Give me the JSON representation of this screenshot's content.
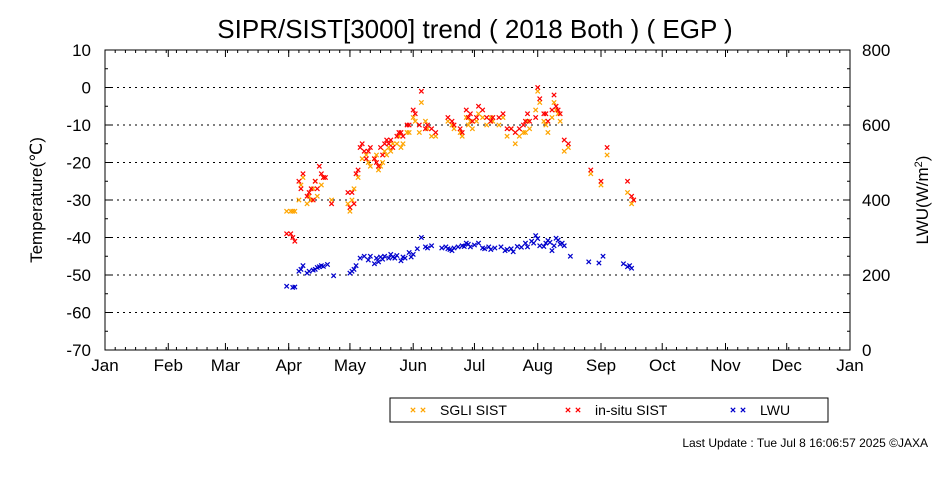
{
  "chart_data": {
    "type": "scatter",
    "title": "SIPR/SIST[3000] trend ( 2018 Both ) ( EGP )",
    "ylabel": "Temperature(℃)",
    "y2label": "LWU(W/m²)",
    "ylim": [
      -70,
      10
    ],
    "y2lim": [
      0,
      800
    ],
    "yticks": [
      10,
      0,
      -10,
      -20,
      -30,
      -40,
      -50,
      -60,
      -70
    ],
    "y2ticks": [
      800,
      600,
      400,
      200,
      0
    ],
    "xticks": [
      {
        "label": "Jan",
        "day": 1
      },
      {
        "label": "Feb",
        "day": 32
      },
      {
        "label": "Mar",
        "day": 60
      },
      {
        "label": "Apr",
        "day": 91
      },
      {
        "label": "May",
        "day": 121
      },
      {
        "label": "Jun",
        "day": 152
      },
      {
        "label": "Jul",
        "day": 182
      },
      {
        "label": "Aug",
        "day": 213
      },
      {
        "label": "Sep",
        "day": 244
      },
      {
        "label": "Oct",
        "day": 274
      },
      {
        "label": "Nov",
        "day": 305
      },
      {
        "label": "Dec",
        "day": 335
      },
      {
        "label": "Jan",
        "day": 366
      }
    ],
    "xlim": [
      1,
      366
    ],
    "grid": "horizontal dotted",
    "legend_position": "bottom",
    "series": [
      {
        "name": "SGLI SIST",
        "color": "#ffa500",
        "axis": "left",
        "points": [
          [
            90,
            -33
          ],
          [
            92,
            -33
          ],
          [
            93,
            -33
          ],
          [
            94,
            -33
          ],
          [
            96,
            -30
          ],
          [
            97,
            -26
          ],
          [
            98,
            -24
          ],
          [
            100,
            -31
          ],
          [
            101,
            -29
          ],
          [
            102,
            -30
          ],
          [
            103,
            -27
          ],
          [
            104,
            -25
          ],
          [
            105,
            -29
          ],
          [
            107,
            -26
          ],
          [
            108,
            -24
          ],
          [
            112,
            -30
          ],
          [
            120,
            -31
          ],
          [
            121,
            -33
          ],
          [
            122,
            -30
          ],
          [
            123,
            -27
          ],
          [
            125,
            -24
          ],
          [
            127,
            -19
          ],
          [
            129,
            -18
          ],
          [
            130,
            -20
          ],
          [
            131,
            -21
          ],
          [
            133,
            -19
          ],
          [
            134,
            -18
          ],
          [
            135,
            -22
          ],
          [
            136,
            -21
          ],
          [
            137,
            -20
          ],
          [
            138,
            -17
          ],
          [
            139,
            -18
          ],
          [
            140,
            -16
          ],
          [
            141,
            -17
          ],
          [
            142,
            -15
          ],
          [
            144,
            -15
          ],
          [
            145,
            -13
          ],
          [
            146,
            -16
          ],
          [
            147,
            -15
          ],
          [
            149,
            -12
          ],
          [
            150,
            -12
          ],
          [
            152,
            -8
          ],
          [
            153,
            -9
          ],
          [
            155,
            -12
          ],
          [
            156,
            -4
          ],
          [
            158,
            -9
          ],
          [
            159,
            -11
          ],
          [
            161,
            -13
          ],
          [
            163,
            -13
          ],
          [
            169,
            -9
          ],
          [
            171,
            -10
          ],
          [
            172,
            -11
          ],
          [
            175,
            -12
          ],
          [
            176,
            -13
          ],
          [
            178,
            -8
          ],
          [
            179,
            -10
          ],
          [
            180,
            -9
          ],
          [
            181,
            -11
          ],
          [
            183,
            -9
          ],
          [
            184,
            -7
          ],
          [
            186,
            -8
          ],
          [
            188,
            -10
          ],
          [
            190,
            -8
          ],
          [
            191,
            -9
          ],
          [
            194,
            -10
          ],
          [
            196,
            -8
          ],
          [
            198,
            -13
          ],
          [
            200,
            -11
          ],
          [
            202,
            -15
          ],
          [
            204,
            -13
          ],
          [
            206,
            -12
          ],
          [
            207,
            -12
          ],
          [
            208,
            -9
          ],
          [
            209,
            -11
          ],
          [
            212,
            -6
          ],
          [
            213,
            -1
          ],
          [
            214,
            -4
          ],
          [
            216,
            -9
          ],
          [
            217,
            -10
          ],
          [
            218,
            -12
          ],
          [
            220,
            -8
          ],
          [
            221,
            -4
          ],
          [
            222,
            -6
          ],
          [
            223,
            -7
          ],
          [
            224,
            -9
          ],
          [
            226,
            -17
          ],
          [
            228,
            -16
          ],
          [
            239,
            -23
          ],
          [
            244,
            -26
          ],
          [
            247,
            -18
          ],
          [
            257,
            -28
          ],
          [
            259,
            -31
          ],
          [
            260,
            -30
          ]
        ]
      },
      {
        "name": "in-situ SIST",
        "color": "#ff0000",
        "axis": "left",
        "points": [
          [
            90,
            -39
          ],
          [
            92,
            -39
          ],
          [
            93,
            -40
          ],
          [
            94,
            -41
          ],
          [
            96,
            -25
          ],
          [
            97,
            -27
          ],
          [
            98,
            -23
          ],
          [
            100,
            -29
          ],
          [
            101,
            -28
          ],
          [
            102,
            -27
          ],
          [
            103,
            -30
          ],
          [
            104,
            -25
          ],
          [
            105,
            -27
          ],
          [
            106,
            -21
          ],
          [
            107,
            -23
          ],
          [
            108,
            -24
          ],
          [
            109,
            -24
          ],
          [
            112,
            -31
          ],
          [
            120,
            -28
          ],
          [
            121,
            -32
          ],
          [
            122,
            -28
          ],
          [
            123,
            -31
          ],
          [
            124,
            -23
          ],
          [
            125,
            -22
          ],
          [
            126,
            -16
          ],
          [
            127,
            -15
          ],
          [
            128,
            -17
          ],
          [
            129,
            -19
          ],
          [
            130,
            -17
          ],
          [
            131,
            -16
          ],
          [
            133,
            -19
          ],
          [
            134,
            -20
          ],
          [
            135,
            -21
          ],
          [
            136,
            -16
          ],
          [
            137,
            -18
          ],
          [
            138,
            -15
          ],
          [
            139,
            -14
          ],
          [
            140,
            -15
          ],
          [
            141,
            -14
          ],
          [
            142,
            -16
          ],
          [
            144,
            -13
          ],
          [
            145,
            -12
          ],
          [
            146,
            -12
          ],
          [
            147,
            -13
          ],
          [
            149,
            -10
          ],
          [
            150,
            -10
          ],
          [
            152,
            -6
          ],
          [
            153,
            -7
          ],
          [
            155,
            -10
          ],
          [
            156,
            -1
          ],
          [
            158,
            -11
          ],
          [
            159,
            -10
          ],
          [
            161,
            -11
          ],
          [
            163,
            -12
          ],
          [
            169,
            -8
          ],
          [
            171,
            -9
          ],
          [
            172,
            -10
          ],
          [
            175,
            -11
          ],
          [
            176,
            -12
          ],
          [
            178,
            -6
          ],
          [
            179,
            -8
          ],
          [
            180,
            -7
          ],
          [
            181,
            -9
          ],
          [
            183,
            -8
          ],
          [
            184,
            -5
          ],
          [
            186,
            -6
          ],
          [
            188,
            -8
          ],
          [
            190,
            -9
          ],
          [
            191,
            -8
          ],
          [
            194,
            -8
          ],
          [
            196,
            -7
          ],
          [
            198,
            -11
          ],
          [
            200,
            -11
          ],
          [
            202,
            -12
          ],
          [
            204,
            -11
          ],
          [
            206,
            -10
          ],
          [
            207,
            -9
          ],
          [
            208,
            -7
          ],
          [
            209,
            -9
          ],
          [
            212,
            -8
          ],
          [
            213,
            0
          ],
          [
            214,
            -3
          ],
          [
            216,
            -7
          ],
          [
            217,
            -7
          ],
          [
            218,
            -9
          ],
          [
            220,
            -6
          ],
          [
            221,
            -2
          ],
          [
            222,
            -5
          ],
          [
            223,
            -6
          ],
          [
            224,
            -7
          ],
          [
            226,
            -14
          ],
          [
            228,
            -15
          ],
          [
            239,
            -22
          ],
          [
            244,
            -25
          ],
          [
            247,
            -16
          ],
          [
            257,
            -25
          ],
          [
            259,
            -29
          ],
          [
            260,
            -30
          ]
        ]
      },
      {
        "name": "LWU",
        "color": "#0000cc",
        "axis": "right",
        "points": [
          [
            90,
            170
          ],
          [
            93,
            167
          ],
          [
            94,
            168
          ],
          [
            96,
            210
          ],
          [
            97,
            215
          ],
          [
            98,
            225
          ],
          [
            100,
            205
          ],
          [
            101,
            210
          ],
          [
            103,
            213
          ],
          [
            104,
            215
          ],
          [
            105,
            220
          ],
          [
            106,
            222
          ],
          [
            107,
            225
          ],
          [
            108,
            223
          ],
          [
            110,
            228
          ],
          [
            113,
            198
          ],
          [
            121,
            205
          ],
          [
            122,
            210
          ],
          [
            123,
            215
          ],
          [
            124,
            225
          ],
          [
            126,
            245
          ],
          [
            128,
            250
          ],
          [
            130,
            240
          ],
          [
            131,
            250
          ],
          [
            133,
            230
          ],
          [
            134,
            245
          ],
          [
            135,
            235
          ],
          [
            136,
            248
          ],
          [
            137,
            242
          ],
          [
            138,
            250
          ],
          [
            140,
            245
          ],
          [
            141,
            255
          ],
          [
            142,
            248
          ],
          [
            143,
            245
          ],
          [
            144,
            252
          ],
          [
            146,
            238
          ],
          [
            147,
            248
          ],
          [
            148,
            245
          ],
          [
            150,
            260
          ],
          [
            151,
            248
          ],
          [
            152,
            255
          ],
          [
            154,
            270
          ],
          [
            156,
            300
          ],
          [
            158,
            275
          ],
          [
            159,
            272
          ],
          [
            161,
            278
          ],
          [
            166,
            272
          ],
          [
            168,
            275
          ],
          [
            169,
            270
          ],
          [
            170,
            268
          ],
          [
            171,
            265
          ],
          [
            172,
            272
          ],
          [
            174,
            275
          ],
          [
            176,
            278
          ],
          [
            177,
            276
          ],
          [
            178,
            285
          ],
          [
            179,
            282
          ],
          [
            180,
            275
          ],
          [
            182,
            280
          ],
          [
            184,
            285
          ],
          [
            186,
            272
          ],
          [
            187,
            270
          ],
          [
            189,
            275
          ],
          [
            190,
            268
          ],
          [
            192,
            272
          ],
          [
            195,
            275
          ],
          [
            197,
            265
          ],
          [
            198,
            268
          ],
          [
            200,
            270
          ],
          [
            201,
            262
          ],
          [
            203,
            276
          ],
          [
            205,
            274
          ],
          [
            207,
            285
          ],
          [
            208,
            275
          ],
          [
            210,
            290
          ],
          [
            211,
            285
          ],
          [
            212,
            305
          ],
          [
            213,
            297
          ],
          [
            214,
            278
          ],
          [
            216,
            276
          ],
          [
            217,
            285
          ],
          [
            218,
            292
          ],
          [
            219,
            287
          ],
          [
            220,
            265
          ],
          [
            221,
            278
          ],
          [
            222,
            298
          ],
          [
            223,
            293
          ],
          [
            224,
            282
          ],
          [
            225,
            285
          ],
          [
            226,
            278
          ],
          [
            229,
            250
          ],
          [
            238,
            235
          ],
          [
            243,
            232
          ],
          [
            245,
            250
          ],
          [
            255,
            230
          ],
          [
            257,
            222
          ],
          [
            258,
            225
          ],
          [
            259,
            218
          ]
        ]
      }
    ]
  },
  "footer": {
    "last_update": "Last Update : Tue Jul  8 16:06:57 2025  ©JAXA"
  }
}
